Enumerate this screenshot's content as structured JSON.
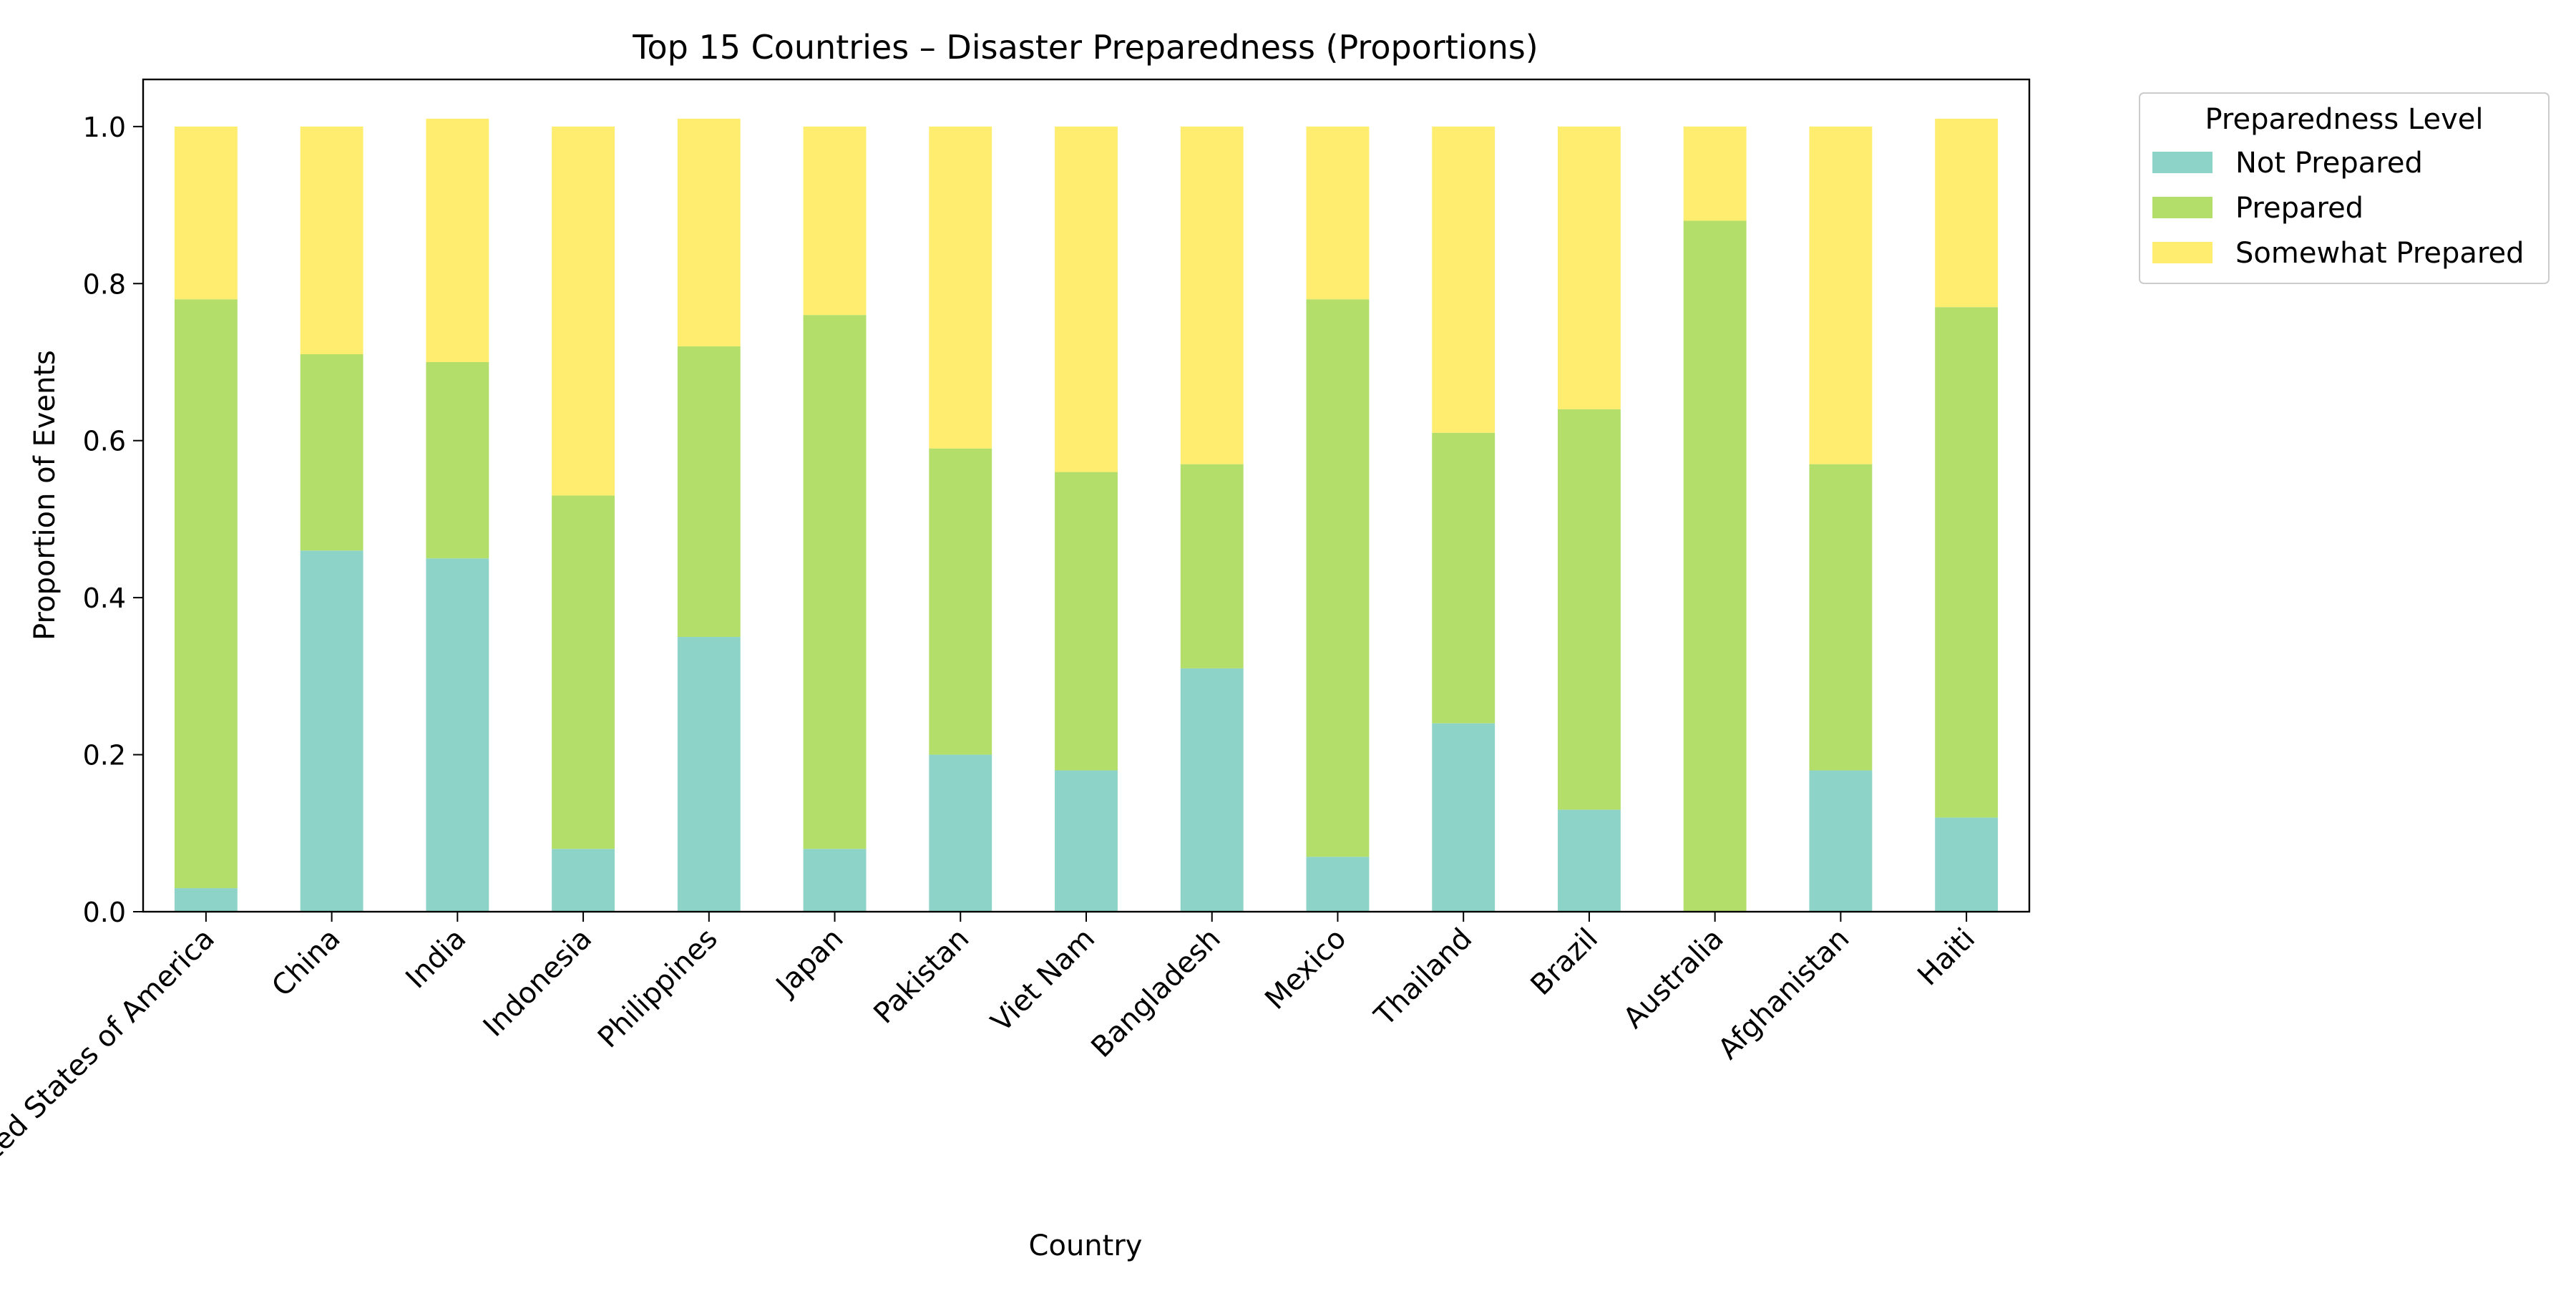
{
  "chart_data": {
    "type": "bar",
    "stacked": true,
    "title": "Top 15 Countries – Disaster Preparedness (Proportions)",
    "xlabel": "Country",
    "ylabel": "Proportion of Events",
    "ylim": [
      0,
      1.06
    ],
    "yticks": [
      "0.0",
      "0.2",
      "0.4",
      "0.6",
      "0.8",
      "1.0"
    ],
    "grid": false,
    "legend": {
      "title": "Preparedness Level",
      "placement": "outside-top-right"
    },
    "categories": [
      "United States of America",
      "China",
      "India",
      "Indonesia",
      "Philippines",
      "Japan",
      "Pakistan",
      "Viet Nam",
      "Bangladesh",
      "Mexico",
      "Thailand",
      "Brazil",
      "Australia",
      "Afghanistan",
      "Haiti"
    ],
    "series": [
      {
        "name": "Not Prepared",
        "color": "#8dd3c7",
        "values": [
          0.03,
          0.46,
          0.45,
          0.08,
          0.35,
          0.08,
          0.2,
          0.18,
          0.31,
          0.07,
          0.24,
          0.13,
          0.0,
          0.18,
          0.12
        ]
      },
      {
        "name": "Prepared",
        "color": "#b3de69",
        "values": [
          0.75,
          0.25,
          0.25,
          0.45,
          0.37,
          0.68,
          0.39,
          0.38,
          0.26,
          0.71,
          0.37,
          0.51,
          0.88,
          0.39,
          0.65
        ]
      },
      {
        "name": "Somewhat Prepared",
        "color": "#ffed6f",
        "values": [
          0.22,
          0.29,
          0.31,
          0.47,
          0.29,
          0.24,
          0.41,
          0.44,
          0.43,
          0.22,
          0.39,
          0.36,
          0.12,
          0.43,
          0.24
        ]
      }
    ]
  }
}
